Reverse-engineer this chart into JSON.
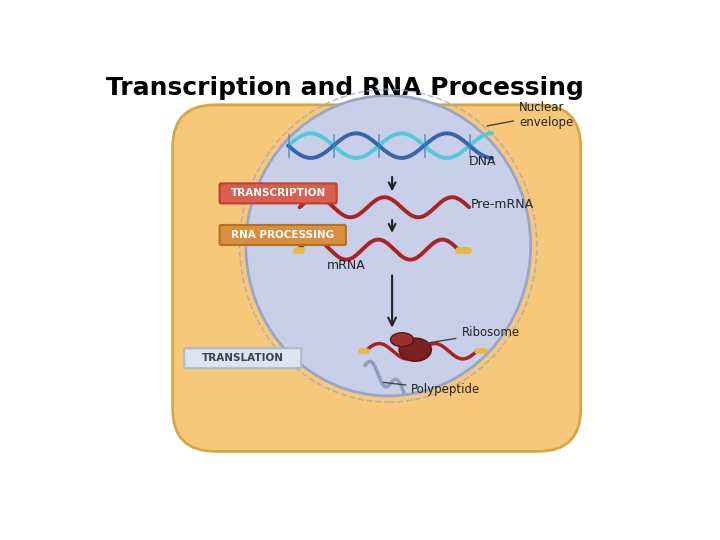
{
  "title": "Transcription and RNA Processing",
  "title_fontsize": 18,
  "title_fontweight": "bold",
  "bg_color": "#ffffff",
  "cell_color": "#f7c87a",
  "cell_border_color": "#d4a843",
  "nucleus_color": "#c8cfe8",
  "nucleus_border_color": "#9aa5cc",
  "dna_color1": "#55c8d8",
  "dna_color2": "#55c8d8",
  "mrna_color": "#aa2222",
  "yellow_color": "#e8b840",
  "transcription_box_color": "#d86050",
  "transcription_box_border": "#c04030",
  "rna_processing_box_color": "#d89040",
  "rna_processing_box_border": "#b87020",
  "translation_box_color": "#dce4f0",
  "translation_box_border": "#aabbcc",
  "arrow_color": "#222222",
  "label_color": "#222222",
  "nuclear_envelope_label": "Nuclear\nenvelope",
  "dna_label": "DNA",
  "pre_mrna_label": "Pre-mRNA",
  "mrna_label": "mRNA",
  "transcription_label": "TRANSCRIPTION",
  "rna_processing_label": "RNA PROCESSING",
  "translation_label": "TRANSLATION",
  "ribosome_label": "Ribosome",
  "polypeptide_label": "Polypeptide",
  "ribosome_color": "#7a2020",
  "polypeptide_color": "#8899bb"
}
